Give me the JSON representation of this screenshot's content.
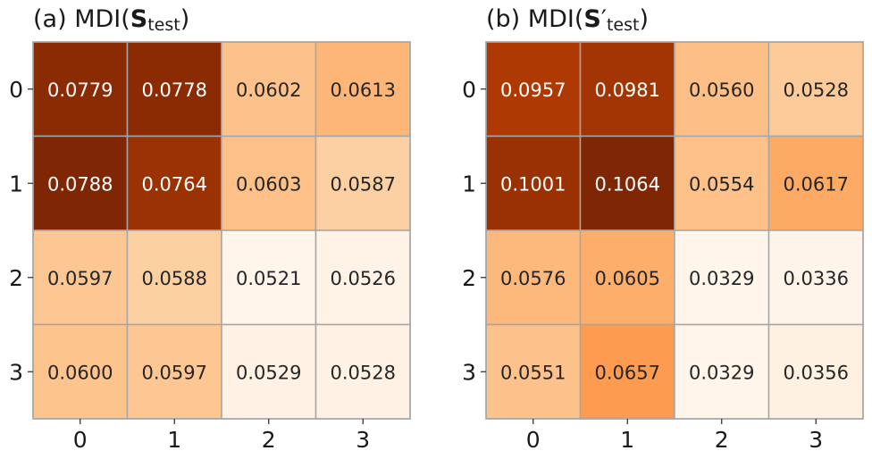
{
  "chart_data": [
    {
      "type": "heatmap",
      "title": {
        "prefix": "(a) MDI(",
        "symbol": "S",
        "prime": "",
        "subscript": "test",
        "suffix": ")"
      },
      "x_ticks": [
        "0",
        "1",
        "2",
        "3"
      ],
      "y_ticks": [
        "0",
        "1",
        "2",
        "3"
      ],
      "values": [
        [
          0.0779,
          0.0778,
          0.0602,
          0.0613
        ],
        [
          0.0788,
          0.0764,
          0.0603,
          0.0587
        ],
        [
          0.0597,
          0.0588,
          0.0521,
          0.0526
        ],
        [
          0.06,
          0.0597,
          0.0529,
          0.0528
        ]
      ],
      "labels": [
        [
          "0.0779",
          "0.0778",
          "0.0602",
          "0.0613"
        ],
        [
          "0.0788",
          "0.0764",
          "0.0603",
          "0.0587"
        ],
        [
          "0.0597",
          "0.0588",
          "0.0521",
          "0.0526"
        ],
        [
          "0.0600",
          "0.0597",
          "0.0529",
          "0.0528"
        ]
      ],
      "colormap": "Oranges"
    },
    {
      "type": "heatmap",
      "title": {
        "prefix": "(b) MDI(",
        "symbol": "S",
        "prime": "′",
        "subscript": "test",
        "suffix": ")"
      },
      "x_ticks": [
        "0",
        "1",
        "2",
        "3"
      ],
      "y_ticks": [
        "0",
        "1",
        "2",
        "3"
      ],
      "values": [
        [
          0.0957,
          0.0981,
          0.056,
          0.0528
        ],
        [
          0.1001,
          0.1064,
          0.0554,
          0.0617
        ],
        [
          0.0576,
          0.0605,
          0.0329,
          0.0336
        ],
        [
          0.0551,
          0.0657,
          0.0329,
          0.0356
        ]
      ],
      "labels": [
        [
          "0.0957",
          "0.0981",
          "0.0560",
          "0.0528"
        ],
        [
          "0.1001",
          "0.1064",
          "0.0554",
          "0.0617"
        ],
        [
          "0.0576",
          "0.0605",
          "0.0329",
          "0.0336"
        ],
        [
          "0.0551",
          "0.0657",
          "0.0329",
          "0.0356"
        ]
      ],
      "colormap": "Oranges"
    }
  ]
}
